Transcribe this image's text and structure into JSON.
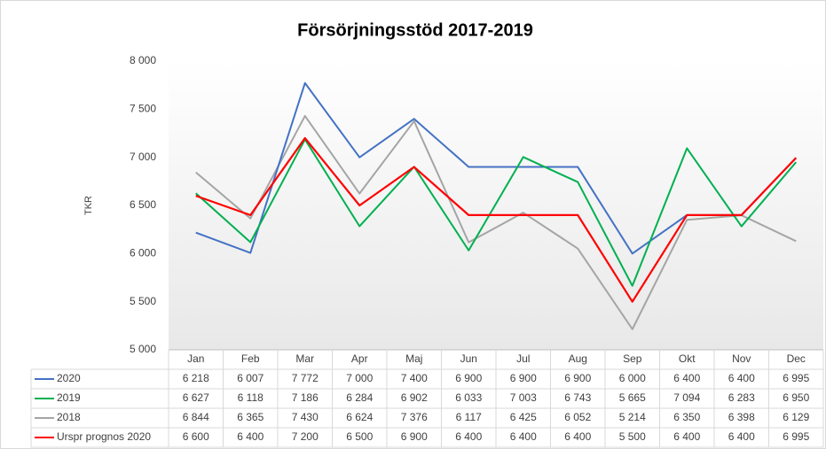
{
  "chart_data": {
    "type": "line",
    "title": "Försörjningsstöd 2017-2019",
    "y_label": "TKR",
    "categories": [
      "Jan",
      "Feb",
      "Mar",
      "Apr",
      "Maj",
      "Jun",
      "Jul",
      "Aug",
      "Sep",
      "Okt",
      "Nov",
      "Dec"
    ],
    "series": [
      {
        "name": "2020",
        "color": "#4472c4",
        "values": [
          6218,
          6007,
          7772,
          7000,
          7400,
          6900,
          6900,
          6900,
          6000,
          6400,
          6400,
          6995
        ],
        "value_labels": [
          "6 218",
          "6 007",
          "7 772",
          "7 000",
          "7 400",
          "6 900",
          "6 900",
          "6 900",
          "6 000",
          "6 400",
          "6 400",
          "6 995"
        ]
      },
      {
        "name": "2019",
        "color": "#00b050",
        "values": [
          6627,
          6118,
          7186,
          6284,
          6902,
          6033,
          7003,
          6743,
          5665,
          7094,
          6283,
          6950
        ],
        "value_labels": [
          "6 627",
          "6 118",
          "7 186",
          "6 284",
          "6 902",
          "6 033",
          "7 003",
          "6 743",
          "5 665",
          "7 094",
          "6 283",
          "6 950"
        ]
      },
      {
        "name": "2018",
        "color": "#a5a5a5",
        "values": [
          6844,
          6365,
          7430,
          6624,
          7376,
          6117,
          6425,
          6052,
          5214,
          6350,
          6398,
          6129
        ],
        "value_labels": [
          "6 844",
          "6 365",
          "7 430",
          "6 624",
          "7 376",
          "6 117",
          "6 425",
          "6 052",
          "5 214",
          "6 350",
          "6 398",
          "6 129"
        ]
      },
      {
        "name": "Urspr prognos 2020",
        "color": "#ff0000",
        "values": [
          6600,
          6400,
          7200,
          6500,
          6900,
          6400,
          6400,
          6400,
          5500,
          6400,
          6400,
          6995
        ],
        "value_labels": [
          "6 600",
          "6 400",
          "7 200",
          "6 500",
          "6 900",
          "6 400",
          "6 400",
          "6 400",
          "5 500",
          "6 400",
          "6 400",
          "6 995"
        ]
      }
    ],
    "ylim": [
      5000,
      8000
    ],
    "yticks": [
      {
        "value": 5000,
        "label": "5 000"
      },
      {
        "value": 5500,
        "label": "5 500"
      },
      {
        "value": 6000,
        "label": "6 000"
      },
      {
        "value": 6500,
        "label": "6 500"
      },
      {
        "value": 7000,
        "label": "7 000"
      },
      {
        "value": 7500,
        "label": "7 500"
      },
      {
        "value": 8000,
        "label": "8 000"
      }
    ]
  }
}
